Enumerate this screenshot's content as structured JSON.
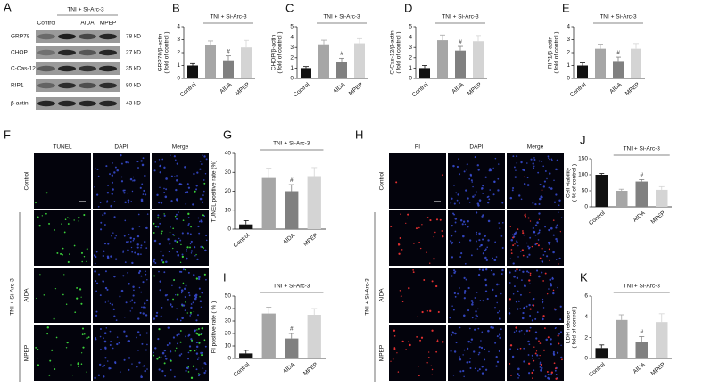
{
  "figure": {
    "panel_A": "A",
    "blot": {
      "group_label": "TNI + Si-Arc-3",
      "lanes": [
        "Control",
        null,
        "AIDA",
        "MPEP"
      ],
      "proteins": [
        "GRP78",
        "CHOP",
        "C-Cas-12",
        "RIP1",
        "β-actin"
      ],
      "sizes": [
        "78 kD",
        "27 kD",
        "35 kD",
        "80 kD",
        "43 kD"
      ]
    },
    "tunel": {
      "panel": "F",
      "columns": [
        "TUNEL",
        "DAPI",
        "Merge"
      ],
      "rows": [
        "Control",
        null,
        "AIDA",
        "MPEP"
      ],
      "group_label": "TNI + Si-Arc-3"
    },
    "pi": {
      "panel": "H",
      "columns": [
        "PI",
        "DAPI",
        "Merge"
      ],
      "rows": [
        "Control",
        null,
        "AIDA",
        "MPEP"
      ],
      "group_label": "TNI + Si-Arc-3"
    }
  },
  "chart_data": [
    {
      "type": "bar",
      "panel": "B",
      "ylabel": [
        "GRP78/β-actin",
        "( fold of control )"
      ],
      "categories": [
        "Control",
        null,
        "AIDA",
        "MPEP"
      ],
      "values": [
        1.0,
        2.6,
        1.4,
        2.4
      ],
      "errors": [
        0.15,
        0.3,
        0.35,
        0.55
      ],
      "colors": [
        "#111111",
        "#a6a6a6",
        "#808080",
        "#d4d4d4"
      ],
      "ylim": [
        0,
        4
      ],
      "yticks": [
        0,
        1,
        2,
        3,
        4
      ],
      "group_label": "TNI + Si-Arc-3",
      "annotations": [
        {
          "text": "#",
          "at": "AIDA"
        }
      ]
    },
    {
      "type": "bar",
      "panel": "C",
      "ylabel": [
        "CHOP/β-actin",
        "( fold of control )"
      ],
      "categories": [
        "Control",
        null,
        "AIDA",
        "MPEP"
      ],
      "values": [
        1.0,
        3.3,
        1.6,
        3.4
      ],
      "errors": [
        0.15,
        0.4,
        0.35,
        0.45
      ],
      "colors": [
        "#111111",
        "#a6a6a6",
        "#808080",
        "#d4d4d4"
      ],
      "ylim": [
        0,
        5
      ],
      "yticks": [
        0,
        1,
        2,
        3,
        4,
        5
      ],
      "group_label": "TNI + Si-Arc-3",
      "annotations": [
        {
          "text": "#",
          "at": "AIDA"
        }
      ]
    },
    {
      "type": "bar",
      "panel": "D",
      "ylabel": [
        "C-Cas-12/β-actin",
        "( fold of control )"
      ],
      "categories": [
        "Control",
        null,
        "AIDA",
        "MPEP"
      ],
      "values": [
        1.0,
        3.7,
        2.7,
        3.6
      ],
      "errors": [
        0.25,
        0.5,
        0.4,
        0.55
      ],
      "colors": [
        "#111111",
        "#a6a6a6",
        "#808080",
        "#d4d4d4"
      ],
      "ylim": [
        0,
        5
      ],
      "yticks": [
        0,
        1,
        2,
        3,
        4,
        5
      ],
      "group_label": "TNI + Si-Arc-3",
      "annotations": [
        {
          "text": "#",
          "at": "AIDA"
        }
      ]
    },
    {
      "type": "bar",
      "panel": "E",
      "ylabel": [
        "RIP1/β-actin",
        "( fold of control )"
      ],
      "categories": [
        "Control",
        null,
        "AIDA",
        "MPEP"
      ],
      "values": [
        1.0,
        2.3,
        1.35,
        2.3
      ],
      "errors": [
        0.2,
        0.35,
        0.3,
        0.4
      ],
      "colors": [
        "#111111",
        "#a6a6a6",
        "#808080",
        "#d4d4d4"
      ],
      "ylim": [
        0,
        4
      ],
      "yticks": [
        0,
        1,
        2,
        3,
        4
      ],
      "group_label": "TNI + Si-Arc-3",
      "annotations": [
        {
          "text": "#",
          "at": "AIDA"
        }
      ]
    },
    {
      "type": "bar",
      "panel": "G",
      "ylabel": [
        "TUNEL positive rate (%)"
      ],
      "categories": [
        "Control",
        null,
        "AIDA",
        "MPEP"
      ],
      "values": [
        2.5,
        27,
        20,
        28
      ],
      "errors": [
        2,
        5,
        3.5,
        4.5
      ],
      "colors": [
        "#111111",
        "#a6a6a6",
        "#808080",
        "#d4d4d4"
      ],
      "ylim": [
        0,
        40
      ],
      "yticks": [
        0,
        10,
        20,
        30,
        40
      ],
      "group_label": "TNI + Si-Arc-3",
      "annotations": [
        {
          "text": "#",
          "at": "AIDA"
        }
      ]
    },
    {
      "type": "bar",
      "panel": "I",
      "ylabel": [
        "PI positive rate ( % )"
      ],
      "categories": [
        "Control",
        null,
        "AIDA",
        "MPEP"
      ],
      "values": [
        4,
        36,
        16,
        35
      ],
      "errors": [
        2.5,
        5,
        4,
        5
      ],
      "colors": [
        "#111111",
        "#a6a6a6",
        "#808080",
        "#d4d4d4"
      ],
      "ylim": [
        0,
        50
      ],
      "yticks": [
        0,
        10,
        20,
        30,
        40,
        50
      ],
      "group_label": "TNI + Si-Arc-3",
      "annotations": [
        {
          "text": "#",
          "at": "AIDA"
        }
      ]
    },
    {
      "type": "bar",
      "panel": "J",
      "ylabel": [
        "Cell viability",
        "( % of control )"
      ],
      "categories": [
        "Control",
        null,
        "AIDA",
        "MPEP"
      ],
      "values": [
        100,
        50,
        79,
        53
      ],
      "errors": [
        4,
        5,
        6,
        10
      ],
      "colors": [
        "#111111",
        "#a6a6a6",
        "#808080",
        "#d4d4d4"
      ],
      "ylim": [
        0,
        150
      ],
      "yticks": [
        0,
        50,
        100,
        150
      ],
      "group_label": "TNI + Si-Arc-3",
      "annotations": [
        {
          "text": "#",
          "at": "AIDA"
        }
      ]
    },
    {
      "type": "bar",
      "panel": "K",
      "ylabel": [
        "LDH release",
        "( fold of control )"
      ],
      "categories": [
        "Control",
        null,
        "AIDA",
        "MPEP"
      ],
      "values": [
        1.0,
        3.7,
        1.6,
        3.5
      ],
      "errors": [
        0.3,
        0.5,
        0.5,
        0.8
      ],
      "colors": [
        "#111111",
        "#a6a6a6",
        "#808080",
        "#d4d4d4"
      ],
      "ylim": [
        0,
        6
      ],
      "yticks": [
        0,
        2,
        4,
        6
      ],
      "group_label": "TNI + Si-Arc-3",
      "annotations": [
        {
          "text": "#",
          "at": "AIDA"
        }
      ]
    }
  ]
}
